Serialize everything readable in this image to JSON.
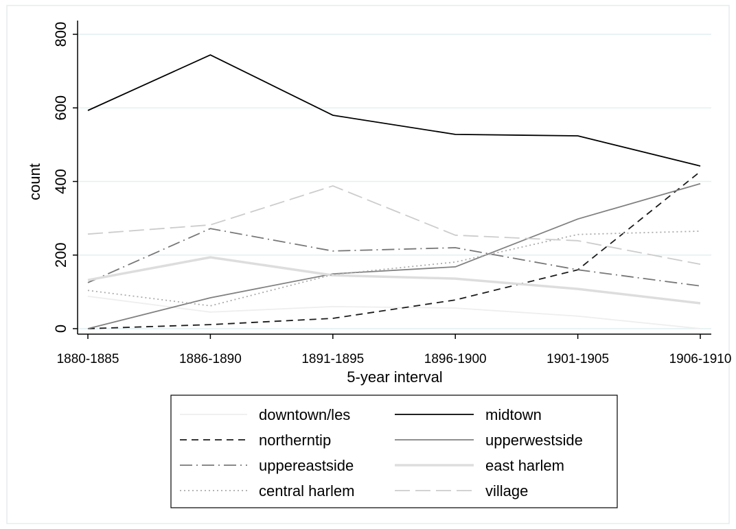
{
  "chart_data": {
    "type": "line",
    "x_label": "5-year interval",
    "y_label": "count",
    "categories": [
      "1880-1885",
      "1886-1890",
      "1891-1895",
      "1896-1900",
      "1901-1905",
      "1906-1910"
    ],
    "ylim": [
      0,
      800
    ],
    "yticks": [
      0,
      200,
      400,
      600,
      800
    ],
    "grid": true,
    "series": [
      {
        "name": "downtown/les",
        "color": "#eeeeee",
        "style": "solid",
        "values": [
          88,
          45,
          60,
          56,
          34,
          0
        ]
      },
      {
        "name": "midtown",
        "color": "#000000",
        "style": "solid",
        "values": [
          593,
          744,
          580,
          528,
          524,
          442
        ]
      },
      {
        "name": "northerntip",
        "color": "#1a1a1a",
        "style": "dash",
        "values": [
          0,
          11,
          28,
          78,
          160,
          427
        ]
      },
      {
        "name": "upperwestside",
        "color": "#808080",
        "style": "solid",
        "values": [
          0,
          84,
          149,
          168,
          298,
          394
        ]
      },
      {
        "name": "uppereastside",
        "color": "#777777",
        "style": "dash-dot",
        "values": [
          125,
          272,
          211,
          220,
          160,
          116
        ]
      },
      {
        "name": "east harlem",
        "color": "#dddddd",
        "style": "thick",
        "values": [
          132,
          194,
          145,
          136,
          108,
          69
        ]
      },
      {
        "name": "central harlem",
        "color": "#aaaaaa",
        "style": "dot",
        "values": [
          104,
          62,
          147,
          181,
          256,
          265
        ]
      },
      {
        "name": "village",
        "color": "#cccccc",
        "style": "long-dash",
        "values": [
          257,
          282,
          388,
          254,
          239,
          175
        ]
      }
    ]
  }
}
